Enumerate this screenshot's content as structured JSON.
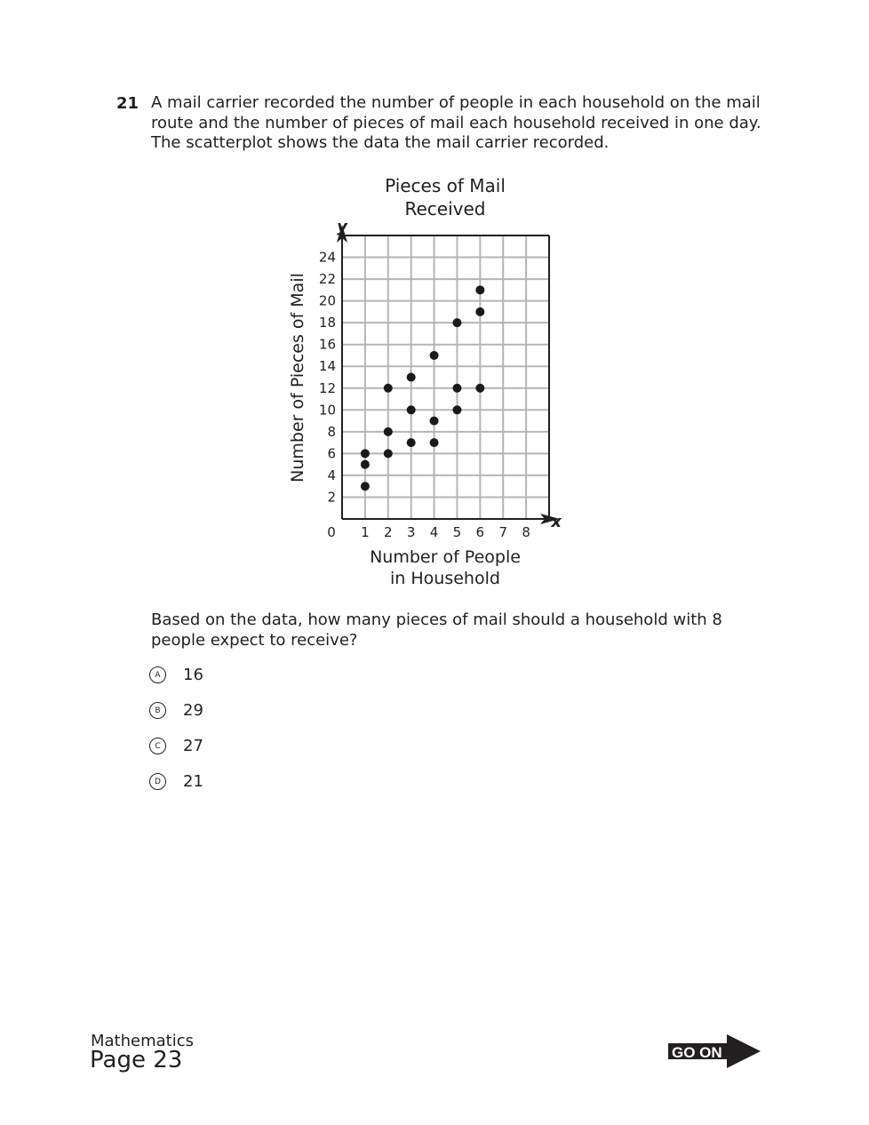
{
  "question": {
    "number": "21",
    "stem": "A mail carrier recorded the number of people in each household on the mail route and the number of pieces of mail each household received in one day. The scatterplot shows the data the mail carrier recorded.",
    "prompt": "Based on the data, how many pieces of mail should a household with 8 people expect to receive?",
    "options": [
      {
        "letter": "A",
        "text": "16"
      },
      {
        "letter": "B",
        "text": "29"
      },
      {
        "letter": "C",
        "text": "27"
      },
      {
        "letter": "D",
        "text": "21"
      }
    ]
  },
  "chart_data": {
    "type": "scatter",
    "title_line1": "Pieces of Mail",
    "title_line2": "Received",
    "xlabel_line1": "Number of People",
    "xlabel_line2": "in Household",
    "ylabel": "Number of Pieces of Mail",
    "x_axis_letter": "x",
    "y_axis_letter": "y",
    "origin_label": "0",
    "xlim": [
      0,
      9
    ],
    "ylim": [
      0,
      26
    ],
    "x_ticks": [
      "1",
      "2",
      "3",
      "4",
      "5",
      "6",
      "7",
      "8"
    ],
    "y_ticks": [
      "2",
      "4",
      "6",
      "8",
      "10",
      "12",
      "14",
      "16",
      "18",
      "20",
      "22",
      "24"
    ],
    "grid": true,
    "points": [
      [
        1,
        6
      ],
      [
        1,
        5
      ],
      [
        1,
        3
      ],
      [
        2,
        12
      ],
      [
        2,
        8
      ],
      [
        2,
        6
      ],
      [
        3,
        13
      ],
      [
        3,
        10
      ],
      [
        3,
        7
      ],
      [
        4,
        15
      ],
      [
        4,
        9
      ],
      [
        4,
        7
      ],
      [
        5,
        18
      ],
      [
        5,
        12
      ],
      [
        5,
        10
      ],
      [
        6,
        21
      ],
      [
        6,
        19
      ],
      [
        6,
        12
      ]
    ]
  },
  "footer": {
    "subject": "Mathematics",
    "page": "Page 23",
    "go_on": "GO ON"
  }
}
